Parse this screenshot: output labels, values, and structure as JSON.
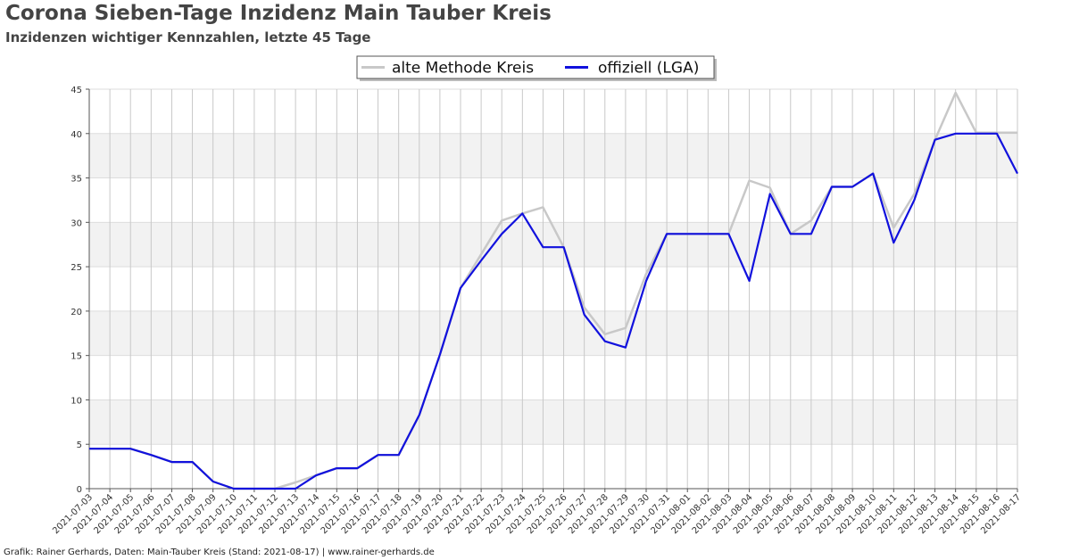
{
  "title": "Corona Sieben-Tage Inzidenz Main Tauber Kreis",
  "subtitle": "Inzidenzen wichtiger Kennzahlen, letzte 45 Tage",
  "footer": "Grafik: Rainer Gerhards, Daten: Main-Tauber Kreis (Stand: 2021-08-17) | www.rainer-gerhards.de",
  "chart_data": {
    "type": "line",
    "title": "Corona Sieben-Tage Inzidenz Main Tauber Kreis",
    "subtitle": "Inzidenzen wichtiger Kennzahlen, letzte 45 Tage",
    "xlabel": "",
    "ylabel": "",
    "ylim": [
      0,
      45
    ],
    "yticks": [
      0,
      5,
      10,
      15,
      20,
      25,
      30,
      35,
      40,
      45
    ],
    "grid": true,
    "legend_position": "top-center",
    "x": [
      "2021-07-03",
      "2021-07-04",
      "2021-07-05",
      "2021-07-06",
      "2021-07-07",
      "2021-07-08",
      "2021-07-09",
      "2021-07-10",
      "2021-07-11",
      "2021-07-12",
      "2021-07-13",
      "2021-07-14",
      "2021-07-15",
      "2021-07-16",
      "2021-07-17",
      "2021-07-18",
      "2021-07-19",
      "2021-07-20",
      "2021-07-21",
      "2021-07-22",
      "2021-07-23",
      "2021-07-24",
      "2021-07-25",
      "2021-07-26",
      "2021-07-27",
      "2021-07-28",
      "2021-07-29",
      "2021-07-30",
      "2021-07-31",
      "2021-08-01",
      "2021-08-02",
      "2021-08-03",
      "2021-08-04",
      "2021-08-05",
      "2021-08-06",
      "2021-08-07",
      "2021-08-08",
      "2021-08-09",
      "2021-08-10",
      "2021-08-11",
      "2021-08-12",
      "2021-08-13",
      "2021-08-14",
      "2021-08-15",
      "2021-08-16",
      "2021-08-17"
    ],
    "series": [
      {
        "name": "alte Methode Kreis",
        "color": "#c8c8c8",
        "values": [
          4.5,
          4.5,
          4.5,
          3.8,
          3.0,
          3.0,
          0.8,
          0.0,
          0.0,
          0.0,
          0.7,
          1.5,
          2.3,
          2.3,
          3.8,
          3.8,
          8.3,
          15.1,
          22.6,
          26.4,
          30.2,
          31.0,
          31.7,
          27.2,
          20.4,
          17.4,
          18.1,
          24.2,
          28.7,
          28.7,
          28.7,
          28.7,
          34.7,
          33.9,
          28.7,
          30.2,
          34.0,
          34.0,
          35.5,
          29.4,
          33.2,
          39.3,
          44.6,
          40.1,
          40.1,
          40.1
        ]
      },
      {
        "name": "offiziell (LGA)",
        "color": "#1111dd",
        "values": [
          4.5,
          4.5,
          4.5,
          3.8,
          3.0,
          3.0,
          0.8,
          0.0,
          0.0,
          0.0,
          0.0,
          1.5,
          2.3,
          2.3,
          3.8,
          3.8,
          8.3,
          15.1,
          22.6,
          25.7,
          28.7,
          31.0,
          27.2,
          27.2,
          19.6,
          16.6,
          15.9,
          23.4,
          28.7,
          28.7,
          28.7,
          28.7,
          23.4,
          33.2,
          28.7,
          28.7,
          34.0,
          34.0,
          35.5,
          27.7,
          32.5,
          39.3,
          40.0,
          40.0,
          40.0,
          35.5
        ]
      }
    ]
  }
}
